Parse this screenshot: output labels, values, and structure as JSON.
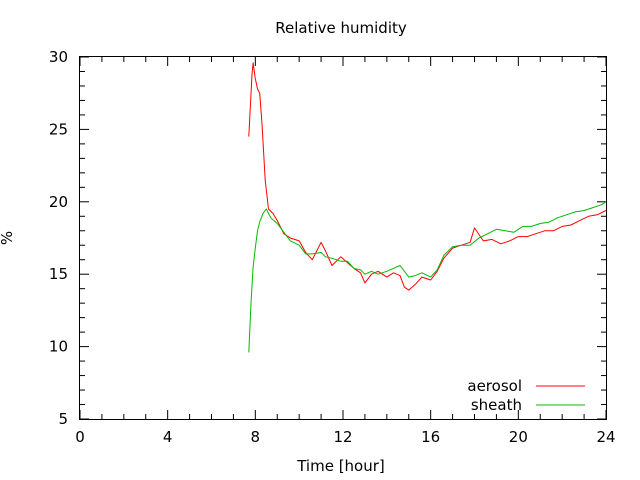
{
  "chart_data": {
    "type": "line",
    "title": "Relative humidity",
    "xlabel": "Time [hour]",
    "ylabel": "%",
    "xlim": [
      0,
      24
    ],
    "ylim": [
      5,
      30
    ],
    "xticks": [
      0,
      4,
      8,
      12,
      16,
      20,
      24
    ],
    "yticks": [
      5,
      10,
      15,
      20,
      25,
      30
    ],
    "grid": false,
    "legend_position": "bottom-right",
    "series": [
      {
        "name": "aerosol",
        "color": "#ff0000",
        "x": [
          7.7,
          7.85,
          7.9,
          8.0,
          8.1,
          8.2,
          8.3,
          8.45,
          8.6,
          8.8,
          9.0,
          9.3,
          9.6,
          10.0,
          10.3,
          10.6,
          11.0,
          11.2,
          11.5,
          11.9,
          12.2,
          12.5,
          12.8,
          13.0,
          13.3,
          13.6,
          14.0,
          14.3,
          14.6,
          14.8,
          15.0,
          15.3,
          15.6,
          16.0,
          16.3,
          16.6,
          17.0,
          17.4,
          17.8,
          18.0,
          18.4,
          18.8,
          19.2,
          19.6,
          20.0,
          20.4,
          20.8,
          21.2,
          21.6,
          22.0,
          22.4,
          22.8,
          23.2,
          23.6,
          24.0
        ],
        "y": [
          24.5,
          28.8,
          29.6,
          28.5,
          27.8,
          27.5,
          25.5,
          21.5,
          19.5,
          19.2,
          18.7,
          17.8,
          17.5,
          17.3,
          16.5,
          16.0,
          17.2,
          16.6,
          15.6,
          16.2,
          15.8,
          15.4,
          15.1,
          14.4,
          15.0,
          15.2,
          14.8,
          15.1,
          14.9,
          14.1,
          13.9,
          14.3,
          14.8,
          14.6,
          15.2,
          16.1,
          16.8,
          17.0,
          17.2,
          18.2,
          17.3,
          17.4,
          17.1,
          17.3,
          17.6,
          17.6,
          17.8,
          18.0,
          18.0,
          18.3,
          18.4,
          18.7,
          19.0,
          19.1,
          19.4
        ]
      },
      {
        "name": "sheath",
        "color": "#00bb00",
        "x": [
          7.7,
          7.8,
          7.9,
          8.0,
          8.1,
          8.2,
          8.35,
          8.5,
          8.7,
          9.0,
          9.3,
          9.6,
          10.0,
          10.3,
          10.6,
          11.0,
          11.2,
          11.5,
          11.9,
          12.2,
          12.5,
          12.8,
          13.0,
          13.3,
          13.6,
          14.0,
          14.3,
          14.6,
          15.0,
          15.3,
          15.6,
          16.0,
          16.3,
          16.6,
          17.0,
          17.4,
          17.8,
          18.2,
          18.6,
          19.0,
          19.4,
          19.8,
          20.2,
          20.6,
          21.0,
          21.4,
          21.8,
          22.2,
          22.6,
          23.0,
          23.4,
          23.8,
          24.0
        ],
        "y": [
          9.6,
          13.0,
          15.5,
          16.8,
          18.0,
          18.6,
          19.2,
          19.5,
          18.9,
          18.5,
          17.9,
          17.3,
          17.0,
          16.4,
          16.4,
          16.5,
          16.2,
          16.1,
          15.9,
          15.9,
          15.4,
          15.3,
          15.0,
          15.2,
          15.0,
          15.2,
          15.4,
          15.6,
          14.8,
          14.9,
          15.1,
          14.8,
          15.3,
          16.3,
          16.9,
          17.0,
          17.0,
          17.5,
          17.8,
          18.1,
          18.0,
          17.9,
          18.3,
          18.3,
          18.5,
          18.6,
          18.9,
          19.1,
          19.3,
          19.4,
          19.6,
          19.8,
          20.0
        ]
      }
    ]
  }
}
